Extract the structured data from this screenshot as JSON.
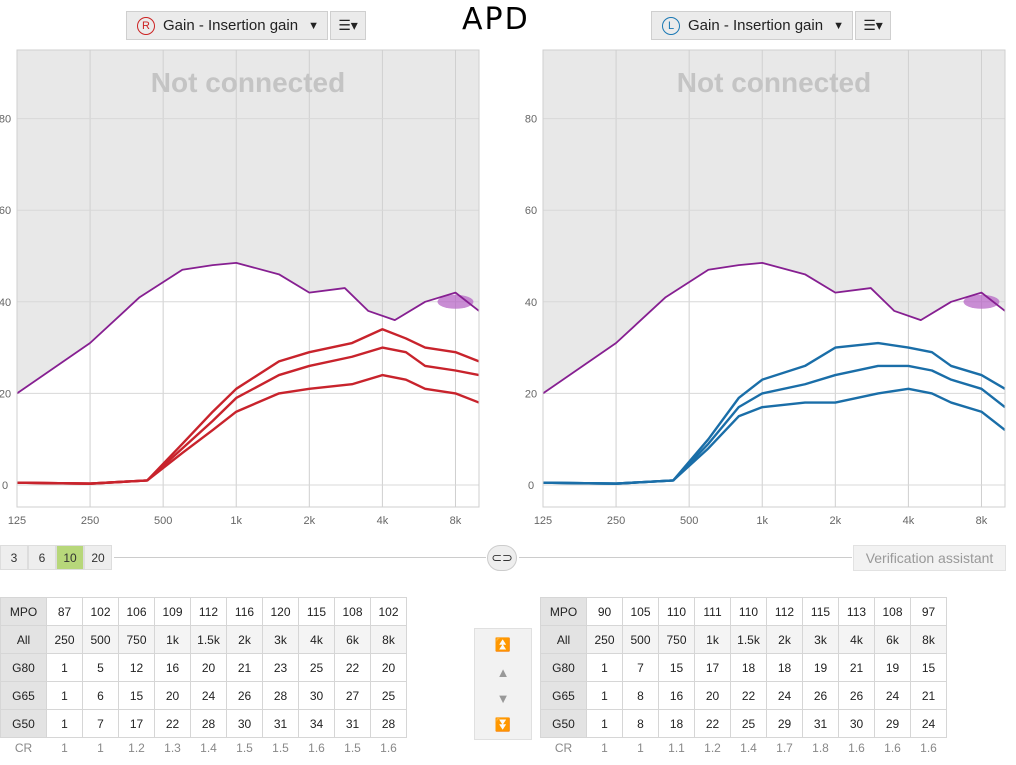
{
  "title": "APD",
  "right_ear": {
    "ear_letter": "R",
    "view_label": "Gain - Insertion gain",
    "overlay": "Not connected",
    "color": "#c8232c"
  },
  "left_ear": {
    "ear_letter": "L",
    "view_label": "Gain - Insertion gain",
    "overlay": "Not connected",
    "color": "#1a6ea8"
  },
  "chart_data": [
    {
      "type": "line",
      "x_scale": "log",
      "x_ticks": [
        "125",
        "250",
        "500",
        "1k",
        "2k",
        "4k",
        "8k"
      ],
      "y_ticks": [
        "0",
        "20",
        "40",
        "60",
        "80"
      ],
      "ylim": [
        0,
        90
      ],
      "series": [
        {
          "values": [
            [
              125,
              20
            ],
            [
              250,
              31
            ],
            [
              400,
              41
            ],
            [
              600,
              47
            ],
            [
              800,
              48
            ],
            [
              1000,
              48.5
            ],
            [
              1500,
              46
            ],
            [
              2000,
              42
            ],
            [
              2800,
              43
            ],
            [
              3500,
              38
            ],
            [
              4500,
              36
            ],
            [
              6000,
              40
            ],
            [
              8000,
              42
            ],
            [
              10000,
              38
            ]
          ]
        },
        {
          "values": [
            [
              125,
              0.5
            ],
            [
              250,
              0.3
            ],
            [
              430,
              1
            ],
            [
              600,
              9
            ],
            [
              800,
              16
            ],
            [
              1000,
              21
            ],
            [
              1500,
              27
            ],
            [
              2000,
              29
            ],
            [
              3000,
              31
            ],
            [
              4000,
              34
            ],
            [
              5000,
              32
            ],
            [
              6000,
              30
            ],
            [
              8000,
              29
            ],
            [
              10000,
              27
            ]
          ]
        },
        {
          "values": [
            [
              125,
              0.5
            ],
            [
              250,
              0.3
            ],
            [
              430,
              1
            ],
            [
              600,
              8
            ],
            [
              800,
              14
            ],
            [
              1000,
              19
            ],
            [
              1500,
              24
            ],
            [
              2000,
              26
            ],
            [
              3000,
              28
            ],
            [
              4000,
              30
            ],
            [
              5000,
              29
            ],
            [
              6000,
              26
            ],
            [
              8000,
              25
            ],
            [
              10000,
              24
            ]
          ]
        },
        {
          "values": [
            [
              125,
              0.5
            ],
            [
              250,
              0.3
            ],
            [
              430,
              1
            ],
            [
              600,
              7
            ],
            [
              800,
              12
            ],
            [
              1000,
              16
            ],
            [
              1500,
              20
            ],
            [
              2000,
              21
            ],
            [
              3000,
              22
            ],
            [
              4000,
              24
            ],
            [
              5000,
              23
            ],
            [
              6000,
              21
            ],
            [
              8000,
              20
            ],
            [
              10000,
              18
            ]
          ]
        }
      ]
    },
    {
      "type": "line",
      "x_scale": "log",
      "x_ticks": [
        "125",
        "250",
        "500",
        "1k",
        "2k",
        "4k",
        "8k"
      ],
      "y_ticks": [
        "0",
        "20",
        "40",
        "60",
        "80"
      ],
      "ylim": [
        0,
        90
      ],
      "series": [
        {
          "values": [
            [
              125,
              20
            ],
            [
              250,
              31
            ],
            [
              400,
              41
            ],
            [
              600,
              47
            ],
            [
              800,
              48
            ],
            [
              1000,
              48.5
            ],
            [
              1500,
              46
            ],
            [
              2000,
              42
            ],
            [
              2800,
              43
            ],
            [
              3500,
              38
            ],
            [
              4500,
              36
            ],
            [
              6000,
              40
            ],
            [
              8000,
              42
            ],
            [
              10000,
              38
            ]
          ]
        },
        {
          "values": [
            [
              125,
              0.5
            ],
            [
              250,
              0.3
            ],
            [
              430,
              1
            ],
            [
              600,
              10
            ],
            [
              800,
              19
            ],
            [
              1000,
              23
            ],
            [
              1500,
              26
            ],
            [
              2000,
              30
            ],
            [
              3000,
              31
            ],
            [
              4000,
              30
            ],
            [
              5000,
              29
            ],
            [
              6000,
              26
            ],
            [
              8000,
              24
            ],
            [
              10000,
              21
            ]
          ]
        },
        {
          "values": [
            [
              125,
              0.5
            ],
            [
              250,
              0.3
            ],
            [
              430,
              1
            ],
            [
              600,
              9
            ],
            [
              800,
              17
            ],
            [
              1000,
              20
            ],
            [
              1500,
              22
            ],
            [
              2000,
              24
            ],
            [
              3000,
              26
            ],
            [
              4000,
              26
            ],
            [
              5000,
              25
            ],
            [
              6000,
              23
            ],
            [
              8000,
              21
            ],
            [
              10000,
              17
            ]
          ]
        },
        {
          "values": [
            [
              125,
              0.5
            ],
            [
              250,
              0.3
            ],
            [
              430,
              1
            ],
            [
              600,
              8
            ],
            [
              800,
              15
            ],
            [
              1000,
              17
            ],
            [
              1500,
              18
            ],
            [
              2000,
              18
            ],
            [
              3000,
              20
            ],
            [
              4000,
              21
            ],
            [
              5000,
              20
            ],
            [
              6000,
              18
            ],
            [
              8000,
              16
            ],
            [
              10000,
              12
            ]
          ]
        }
      ]
    }
  ],
  "scale_buttons": [
    "3",
    "6",
    "10",
    "20"
  ],
  "verification_label": "Verification assistant",
  "tables": {
    "right": {
      "mpo_label": "MPO",
      "mpo": [
        "87",
        "102",
        "106",
        "109",
        "112",
        "116",
        "120",
        "115",
        "108",
        "102"
      ],
      "all_label": "All",
      "freqs": [
        "250",
        "500",
        "750",
        "1k",
        "1.5k",
        "2k",
        "3k",
        "4k",
        "6k",
        "8k"
      ],
      "rows": [
        {
          "label": "G80",
          "values": [
            "1",
            "5",
            "12",
            "16",
            "20",
            "21",
            "23",
            "25",
            "22",
            "20"
          ]
        },
        {
          "label": "G65",
          "values": [
            "1",
            "6",
            "15",
            "20",
            "24",
            "26",
            "28",
            "30",
            "27",
            "25"
          ]
        },
        {
          "label": "G50",
          "values": [
            "1",
            "7",
            "17",
            "22",
            "28",
            "30",
            "31",
            "34",
            "31",
            "28"
          ]
        }
      ],
      "cr_label": "CR",
      "cr": [
        "1",
        "1",
        "1.2",
        "1.3",
        "1.4",
        "1.5",
        "1.5",
        "1.6",
        "1.5",
        "1.6"
      ]
    },
    "left": {
      "mpo_label": "MPO",
      "mpo": [
        "90",
        "105",
        "110",
        "111",
        "110",
        "112",
        "115",
        "113",
        "108",
        "97"
      ],
      "all_label": "All",
      "freqs": [
        "250",
        "500",
        "750",
        "1k",
        "1.5k",
        "2k",
        "3k",
        "4k",
        "6k",
        "8k"
      ],
      "rows": [
        {
          "label": "G80",
          "values": [
            "1",
            "7",
            "15",
            "17",
            "18",
            "18",
            "19",
            "21",
            "19",
            "15"
          ]
        },
        {
          "label": "G65",
          "values": [
            "1",
            "8",
            "16",
            "20",
            "22",
            "24",
            "26",
            "26",
            "24",
            "21"
          ]
        },
        {
          "label": "G50",
          "values": [
            "1",
            "8",
            "18",
            "22",
            "25",
            "29",
            "31",
            "30",
            "29",
            "24"
          ]
        }
      ],
      "cr_label": "CR",
      "cr": [
        "1",
        "1",
        "1.1",
        "1.2",
        "1.4",
        "1.7",
        "1.8",
        "1.6",
        "1.6",
        "1.6"
      ]
    }
  }
}
